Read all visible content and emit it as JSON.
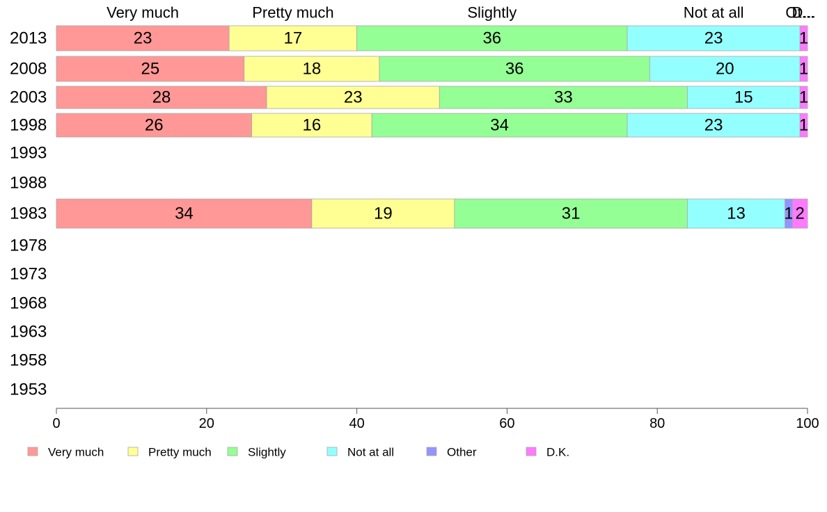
{
  "chart_data": {
    "type": "bar",
    "orientation": "horizontal",
    "stacked": true,
    "categories": [
      "2013",
      "2008",
      "2003",
      "1998",
      "1993",
      "1988",
      "1983",
      "1978",
      "1973",
      "1968",
      "1963",
      "1958",
      "1953"
    ],
    "series": [
      {
        "name": "Very much",
        "color": "#ff9896",
        "values": [
          23,
          25,
          28,
          26,
          null,
          null,
          34,
          null,
          null,
          null,
          null,
          null,
          null
        ]
      },
      {
        "name": "Pretty much",
        "color": "#ffff94",
        "values": [
          17,
          18,
          23,
          16,
          null,
          null,
          19,
          null,
          null,
          null,
          null,
          null,
          null
        ]
      },
      {
        "name": "Slightly",
        "color": "#94ff94",
        "values": [
          36,
          36,
          33,
          34,
          null,
          null,
          31,
          null,
          null,
          null,
          null,
          null,
          null
        ]
      },
      {
        "name": "Not at all",
        "color": "#94ffff",
        "values": [
          23,
          20,
          15,
          23,
          null,
          null,
          13,
          null,
          null,
          null,
          null,
          null,
          null
        ]
      },
      {
        "name": "Other",
        "color": "#9494ff",
        "values": [
          0,
          0,
          0,
          0,
          null,
          null,
          1,
          null,
          null,
          null,
          null,
          null,
          null
        ]
      },
      {
        "name": "D.K.",
        "color": "#ff7aff",
        "values": [
          1,
          1,
          1,
          1,
          null,
          null,
          2,
          null,
          null,
          null,
          null,
          null,
          null
        ]
      }
    ],
    "top_labels": [
      "Very much",
      "Pretty much",
      "Slightly",
      "Not at all",
      "Ot...",
      "D..."
    ],
    "xlim": [
      0,
      100
    ],
    "xticks": [
      0,
      20,
      40,
      60,
      80,
      100
    ],
    "grid": false,
    "legend_position": "bottom"
  }
}
